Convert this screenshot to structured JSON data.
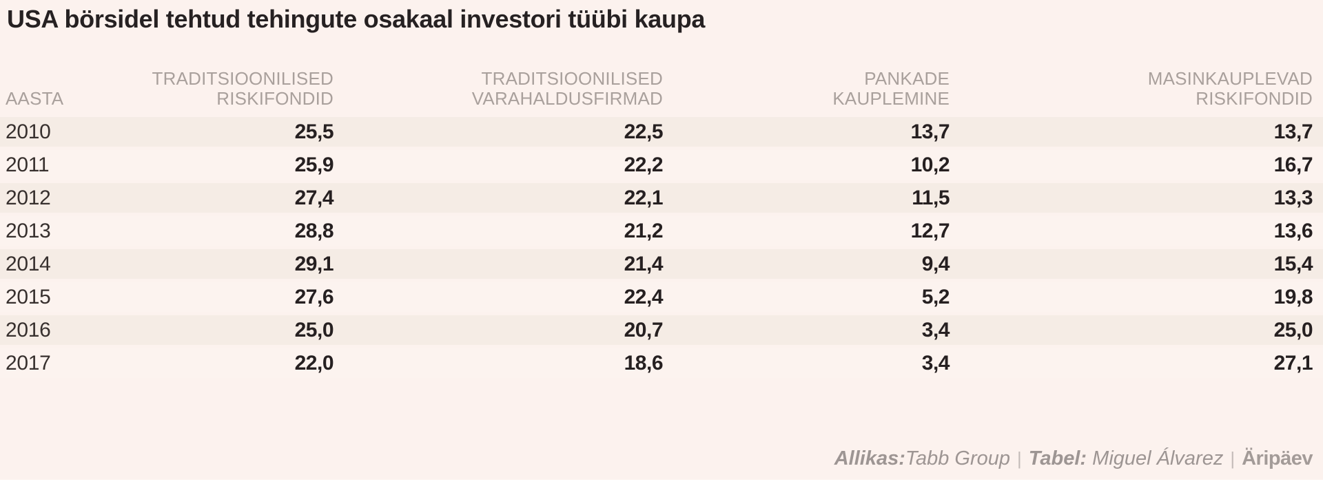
{
  "title": "USA börsidel tehtud tehingute osakaal investori tüübi kaupa",
  "table": {
    "columns": [
      {
        "label": "AASTA",
        "line1": "",
        "line2": "AASTA"
      },
      {
        "label": "TRADITSIOONILISED RISKIFONDID",
        "line1": "TRADITSIOONILISED",
        "line2": "RISKIFONDID"
      },
      {
        "label": "TRADITSIOONILISED VARAHALDUSFIRMAD",
        "line1": "TRADITSIOONILISED",
        "line2": "VARAHALDUSFIRMAD"
      },
      {
        "label": "PANKADE KAUPLEMINE",
        "line1": "PANKADE",
        "line2": "KAUPLEMINE"
      },
      {
        "label": "MASINKAUPLEVAD RISKIFONDID",
        "line1": "MASINKAUPLEVAD",
        "line2": "RISKIFONDID"
      }
    ],
    "rows": [
      {
        "year": "2010",
        "values": [
          "25,5",
          "22,5",
          "13,7",
          "13,7"
        ]
      },
      {
        "year": "2011",
        "values": [
          "25,9",
          "22,2",
          "10,2",
          "16,7"
        ]
      },
      {
        "year": "2012",
        "values": [
          "27,4",
          "22,1",
          "11,5",
          "13,3"
        ]
      },
      {
        "year": "2013",
        "values": [
          "28,8",
          "21,2",
          "12,7",
          "13,6"
        ]
      },
      {
        "year": "2014",
        "values": [
          "29,1",
          "21,4",
          "9,4",
          "15,4"
        ]
      },
      {
        "year": "2015",
        "values": [
          "27,6",
          "22,4",
          "5,2",
          "19,8"
        ]
      },
      {
        "year": "2016",
        "values": [
          "25,0",
          "20,7",
          "3,4",
          "25,0"
        ]
      },
      {
        "year": "2017",
        "values": [
          "22,0",
          "18,6",
          "3,4",
          "27,1"
        ]
      }
    ]
  },
  "footer": {
    "source_label": "Allikas:",
    "source_value": "Tabb Group",
    "separator": "|",
    "table_label": "Tabel:",
    "table_value": "Miguel Álvarez",
    "brand": "Äripäev"
  },
  "colors": {
    "background": "#fcf2ee",
    "row_odd": "#f5ece5",
    "row_even": "#fcf3ef",
    "title_text": "#262122",
    "header_text": "#a9a09c",
    "value_text": "#262021",
    "footer_text": "#9d9593",
    "bottom_strip": "#ffffff"
  },
  "chart_data": {
    "type": "table",
    "title": "USA börsidel tehtud tehingute osakaal investori tüübi kaupa",
    "categories": [
      "2010",
      "2011",
      "2012",
      "2013",
      "2014",
      "2015",
      "2016",
      "2017"
    ],
    "series": [
      {
        "name": "TRADITSIOONILISED RISKIFONDID",
        "values": [
          25.5,
          25.9,
          27.4,
          28.8,
          29.1,
          27.6,
          25.0,
          22.0
        ]
      },
      {
        "name": "TRADITSIOONILISED VARAHALDUSFIRMAD",
        "values": [
          22.5,
          22.2,
          22.1,
          21.2,
          21.4,
          22.4,
          20.7,
          18.6
        ]
      },
      {
        "name": "PANKADE KAUPLEMINE",
        "values": [
          13.7,
          10.2,
          11.5,
          12.7,
          9.4,
          5.2,
          3.4,
          3.4
        ]
      },
      {
        "name": "MASINKAUPLEVAD RISKIFONDID",
        "values": [
          13.7,
          16.7,
          13.3,
          13.6,
          15.4,
          19.8,
          25.0,
          27.1
        ]
      }
    ],
    "xlabel": "AASTA",
    "source": "Tabb Group",
    "credit": "Miguel Álvarez",
    "publisher": "Äripäev"
  }
}
